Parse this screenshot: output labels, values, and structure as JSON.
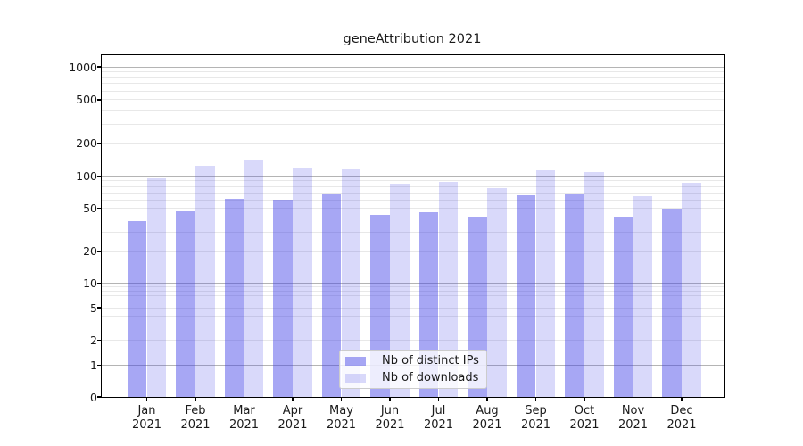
{
  "title": "geneAttribution 2021",
  "chart_data": {
    "type": "bar",
    "categories": [
      "Jan 2021",
      "Feb 2021",
      "Mar 2021",
      "Apr 2021",
      "May 2021",
      "Jun 2021",
      "Jul 2021",
      "Aug 2021",
      "Sep 2021",
      "Oct 2021",
      "Nov 2021",
      "Dec 2021"
    ],
    "series": [
      {
        "name": "Nb of distinct IPs",
        "color": "rgba(64,64,232,0.46)",
        "values": [
          38,
          47,
          61,
          60,
          67,
          43,
          46,
          42,
          66,
          67,
          42,
          50
        ]
      },
      {
        "name": "Nb of downloads",
        "color": "rgba(64,64,232,0.20)",
        "values": [
          96,
          124,
          141,
          120,
          115,
          85,
          88,
          77,
          112,
          108,
          65,
          86
        ]
      }
    ],
    "title": "geneAttribution 2021",
    "xlabel": "",
    "ylabel": "",
    "yscale": "symlog",
    "ylim": [
      0,
      1000
    ],
    "yticks": [
      0,
      1,
      2,
      5,
      10,
      20,
      50,
      100,
      200,
      500,
      1000
    ],
    "grid": "both",
    "legend_position": "lower center"
  },
  "colors": {
    "major_grid": "#b4b4b4",
    "minor_grid": "#e8e8e8",
    "bar_distinct_ips": "rgba(64,64,232,0.46)",
    "bar_downloads": "rgba(64,64,232,0.20)",
    "text": "#1a1a1a"
  }
}
